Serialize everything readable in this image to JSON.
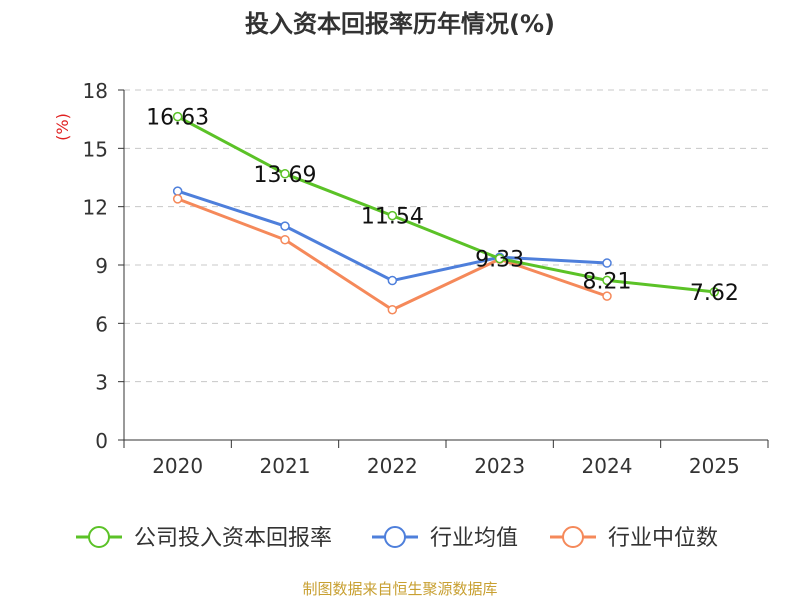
{
  "chart_data": {
    "type": "line",
    "title": "投入资本回报率历年情况(%)",
    "ylabel": "(%)",
    "xlabel": "",
    "categories": [
      "2020",
      "2021",
      "2022",
      "2023",
      "2024",
      "2025"
    ],
    "ylim": [
      0,
      18
    ],
    "yticks": [
      0,
      3,
      6,
      9,
      12,
      15,
      18
    ],
    "grid": true,
    "legend_position": "bottom",
    "series": [
      {
        "name": "公司投入资本回报率",
        "color": "#5bc227",
        "values": [
          16.63,
          13.69,
          11.54,
          9.33,
          8.21,
          7.62
        ],
        "labels": [
          "16.63",
          "13.69",
          "11.54",
          "9.33",
          "8.21",
          "7.62"
        ]
      },
      {
        "name": "行业均值",
        "color": "#4e7fdb",
        "values": [
          12.8,
          11.0,
          8.2,
          9.4,
          9.1,
          null
        ]
      },
      {
        "name": "行业中位数",
        "color": "#f5895a",
        "values": [
          12.4,
          10.3,
          6.7,
          9.3,
          7.4,
          null
        ]
      }
    ],
    "source": "制图数据来自恒生聚源数据库"
  }
}
